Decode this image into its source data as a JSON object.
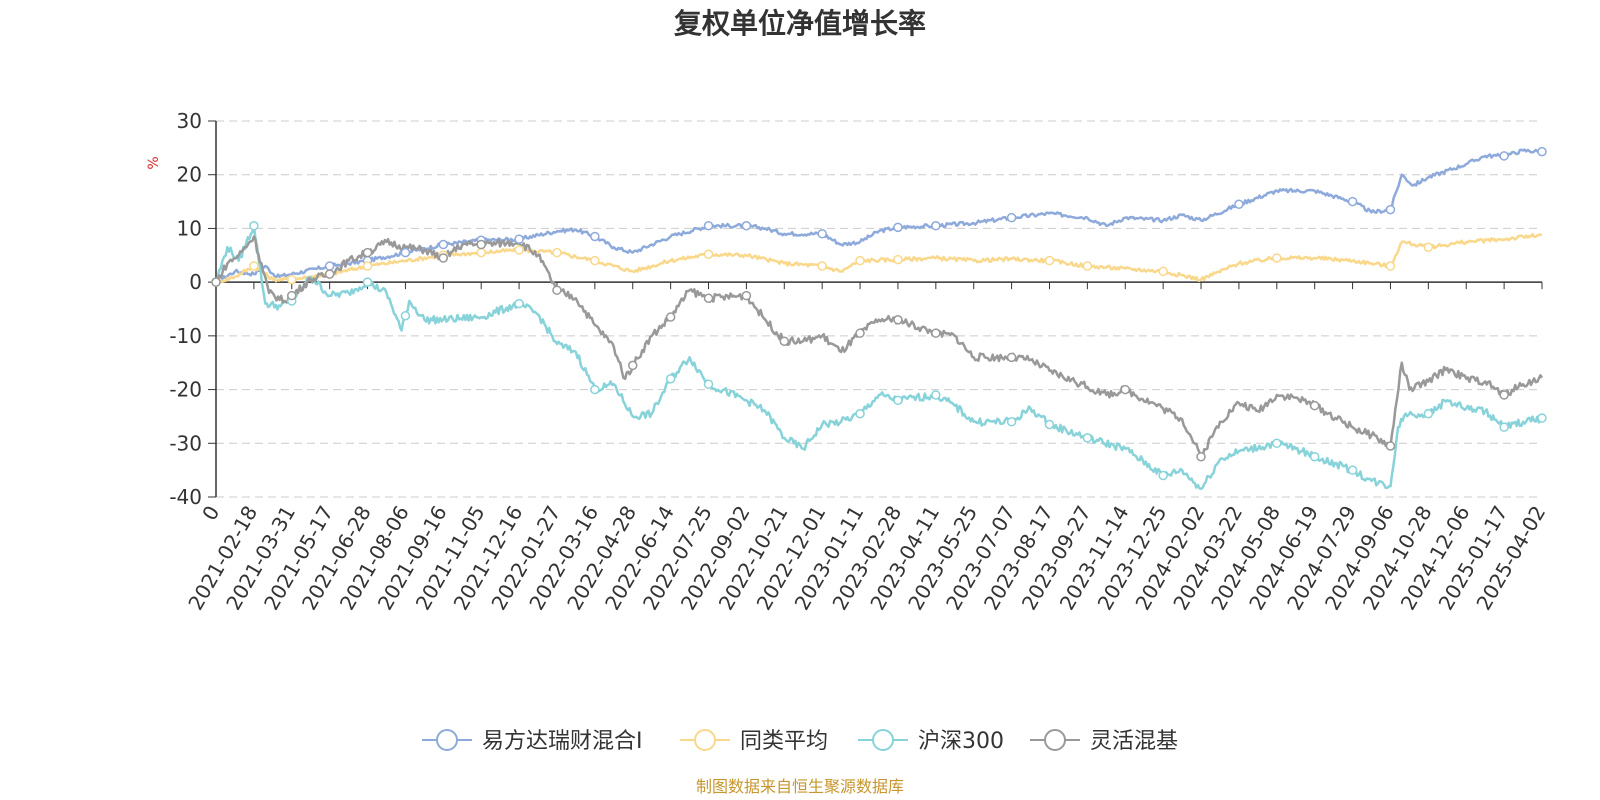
{
  "chart_data": {
    "type": "line",
    "title": "复权单位净值增长率",
    "ylabel": "%",
    "ylim": [
      -40,
      30
    ],
    "yticks": [
      30,
      20,
      10,
      0,
      -10,
      -20,
      -30,
      -40
    ],
    "ytick_labels": [
      "30",
      "20",
      "10",
      "0",
      "-10",
      "-20",
      "-30",
      "-40"
    ],
    "x_categories": [
      "0",
      "2021-02-18",
      "2021-03-31",
      "2021-05-17",
      "2021-06-28",
      "2021-08-06",
      "2021-09-16",
      "2021-11-05",
      "2021-12-16",
      "2022-01-27",
      "2022-03-16",
      "2022-04-28",
      "2022-06-14",
      "2022-07-25",
      "2022-09-02",
      "2022-10-21",
      "2022-12-01",
      "2023-01-11",
      "2023-02-28",
      "2023-04-11",
      "2023-05-25",
      "2023-07-07",
      "2023-08-17",
      "2023-09-27",
      "2023-11-14",
      "2023-12-25",
      "2024-02-02",
      "2024-03-22",
      "2024-05-08",
      "2024-06-19",
      "2024-07-29",
      "2024-09-06",
      "2024-10-28",
      "2024-12-06",
      "2025-01-17",
      "2025-04-02"
    ],
    "x_units": "trading-day index (0–35 maps to the 36 tick labels)",
    "grid": true,
    "legend_position": "bottom",
    "series": [
      {
        "name": "易方达瑞财混合I",
        "color": "#8eaadb",
        "points": [
          [
            0,
            0
          ],
          [
            0.5,
            2.0
          ],
          [
            1,
            1.5
          ],
          [
            1.3,
            3
          ],
          [
            1.6,
            1.0
          ],
          [
            2,
            1.5
          ],
          [
            3,
            3
          ],
          [
            4,
            4
          ],
          [
            5,
            5.5
          ],
          [
            6,
            7
          ],
          [
            7,
            7.8
          ],
          [
            8,
            8
          ],
          [
            9,
            9.5
          ],
          [
            9.5,
            9.8
          ],
          [
            10,
            8.5
          ],
          [
            10.5,
            6.5
          ],
          [
            11,
            5.5
          ],
          [
            12,
            8.5
          ],
          [
            13,
            10.5
          ],
          [
            14,
            10.5
          ],
          [
            14.5,
            10
          ],
          [
            15,
            9
          ],
          [
            16,
            9
          ],
          [
            16.5,
            7
          ],
          [
            17,
            7.5
          ],
          [
            17.5,
            9.5
          ],
          [
            18,
            10.2
          ],
          [
            19,
            10.5
          ],
          [
            20,
            11
          ],
          [
            21,
            12
          ],
          [
            22,
            12.8
          ],
          [
            23,
            12
          ],
          [
            23.5,
            10.5
          ],
          [
            24,
            12
          ],
          [
            25,
            11.5
          ],
          [
            25.5,
            12.5
          ],
          [
            26,
            11.5
          ],
          [
            27,
            14.5
          ],
          [
            28,
            17
          ],
          [
            29,
            17
          ],
          [
            30,
            15
          ],
          [
            30.5,
            13
          ],
          [
            31,
            13.5
          ],
          [
            31.3,
            20
          ],
          [
            31.6,
            18
          ],
          [
            32,
            19.5
          ],
          [
            33,
            22
          ],
          [
            33.5,
            23.5
          ],
          [
            34,
            23.5
          ],
          [
            34.5,
            24.5
          ],
          [
            35,
            24.3
          ]
        ]
      },
      {
        "name": "同类平均",
        "color": "#f9d88b",
        "points": [
          [
            0,
            0
          ],
          [
            0.5,
            1.0
          ],
          [
            1,
            3
          ],
          [
            1.5,
            0.5
          ],
          [
            2,
            0.5
          ],
          [
            3,
            1.5
          ],
          [
            4,
            3
          ],
          [
            5,
            4
          ],
          [
            6,
            5
          ],
          [
            7,
            5.5
          ],
          [
            8,
            6.0
          ],
          [
            9,
            5.5
          ],
          [
            10,
            4
          ],
          [
            11,
            2.0
          ],
          [
            12,
            4
          ],
          [
            13,
            5.2
          ],
          [
            14,
            5
          ],
          [
            15,
            3.5
          ],
          [
            16,
            3
          ],
          [
            16.5,
            2
          ],
          [
            17,
            4
          ],
          [
            18,
            4.2
          ],
          [
            19,
            4.5
          ],
          [
            20,
            4
          ],
          [
            21,
            4.3
          ],
          [
            22,
            4
          ],
          [
            23,
            3
          ],
          [
            24,
            2.5
          ],
          [
            25,
            2
          ],
          [
            26,
            0.5
          ],
          [
            27,
            3.5
          ],
          [
            28,
            4.5
          ],
          [
            29,
            4.5
          ],
          [
            30,
            4
          ],
          [
            30.5,
            3.5
          ],
          [
            31,
            3.0
          ],
          [
            31.3,
            7.5
          ],
          [
            32,
            6.5
          ],
          [
            33,
            7.5
          ],
          [
            34,
            8.0
          ],
          [
            35,
            8.8
          ]
        ]
      },
      {
        "name": "沪深300",
        "color": "#88d3d9",
        "points": [
          [
            0,
            0
          ],
          [
            0.3,
            6.5
          ],
          [
            0.6,
            4
          ],
          [
            1,
            10.5
          ],
          [
            1.3,
            -4
          ],
          [
            1.7,
            -4.5
          ],
          [
            2,
            -3.5
          ],
          [
            2.5,
            1.0
          ],
          [
            3,
            -2.5
          ],
          [
            3.5,
            -2
          ],
          [
            4,
            0
          ],
          [
            4.5,
            -2
          ],
          [
            4.9,
            -9
          ],
          [
            5.1,
            -3.5
          ],
          [
            5.5,
            -7
          ],
          [
            6,
            -7
          ],
          [
            7,
            -6.5
          ],
          [
            8,
            -4
          ],
          [
            8.5,
            -6
          ],
          [
            9,
            -11.5
          ],
          [
            9.5,
            -13
          ],
          [
            10,
            -20
          ],
          [
            10.5,
            -19
          ],
          [
            11,
            -25
          ],
          [
            11.5,
            -24.5
          ],
          [
            12,
            -18
          ],
          [
            12.5,
            -14
          ],
          [
            13,
            -19
          ],
          [
            14,
            -22
          ],
          [
            14.5,
            -24
          ],
          [
            15,
            -29
          ],
          [
            15.5,
            -31
          ],
          [
            16,
            -26.5
          ],
          [
            16.5,
            -26
          ],
          [
            17,
            -24.5
          ],
          [
            17.5,
            -21
          ],
          [
            18,
            -22
          ],
          [
            19,
            -21
          ],
          [
            19.5,
            -23
          ],
          [
            20,
            -26
          ],
          [
            21,
            -26
          ],
          [
            21.5,
            -23.5
          ],
          [
            22,
            -26.5
          ],
          [
            23,
            -29
          ],
          [
            24,
            -31
          ],
          [
            25,
            -36
          ],
          [
            25.5,
            -35
          ],
          [
            26,
            -38.5
          ],
          [
            26.5,
            -33
          ],
          [
            27,
            -31.5
          ],
          [
            28,
            -30
          ],
          [
            28.5,
            -31
          ],
          [
            29,
            -32.5
          ],
          [
            30,
            -35
          ],
          [
            30.5,
            -37
          ],
          [
            31,
            -38
          ],
          [
            31.2,
            -27
          ],
          [
            31.4,
            -24.5
          ],
          [
            32,
            -24.5
          ],
          [
            32.5,
            -22
          ],
          [
            33,
            -23.5
          ],
          [
            33.5,
            -24
          ],
          [
            34,
            -27
          ],
          [
            34.5,
            -26
          ],
          [
            35,
            -25.3
          ]
        ]
      },
      {
        "name": "灵活混基",
        "color": "#999999",
        "points": [
          [
            0,
            0
          ],
          [
            0.3,
            3.5
          ],
          [
            0.6,
            5
          ],
          [
            1,
            8.5
          ],
          [
            1.4,
            -2
          ],
          [
            1.8,
            -3.5
          ],
          [
            2,
            -2.5
          ],
          [
            2.5,
            0.5
          ],
          [
            3,
            1.5
          ],
          [
            3.5,
            4
          ],
          [
            4,
            5.5
          ],
          [
            4.5,
            7.5
          ],
          [
            5,
            6.5
          ],
          [
            5.5,
            6
          ],
          [
            6,
            4.5
          ],
          [
            6.5,
            7
          ],
          [
            7,
            7
          ],
          [
            8,
            7.5
          ],
          [
            8.5,
            5
          ],
          [
            9,
            -1.5
          ],
          [
            9.5,
            -3
          ],
          [
            10,
            -8
          ],
          [
            10.5,
            -12
          ],
          [
            10.8,
            -18
          ],
          [
            11,
            -15.5
          ],
          [
            11.5,
            -10
          ],
          [
            12,
            -6.5
          ],
          [
            12.5,
            -1.5
          ],
          [
            13,
            -3
          ],
          [
            14,
            -2.5
          ],
          [
            14.5,
            -7
          ],
          [
            15,
            -11
          ],
          [
            15.5,
            -11
          ],
          [
            16,
            -10
          ],
          [
            16.5,
            -13
          ],
          [
            17,
            -9.5
          ],
          [
            17.5,
            -7
          ],
          [
            18,
            -7
          ],
          [
            19,
            -9.5
          ],
          [
            19.5,
            -10
          ],
          [
            20,
            -14
          ],
          [
            21,
            -14
          ],
          [
            21.5,
            -14.5
          ],
          [
            22,
            -16.5
          ],
          [
            23,
            -19.5
          ],
          [
            23.5,
            -21
          ],
          [
            24,
            -20
          ],
          [
            25,
            -23.5
          ],
          [
            25.5,
            -25.5
          ],
          [
            26,
            -32.5
          ],
          [
            26.5,
            -26
          ],
          [
            27,
            -22.5
          ],
          [
            27.5,
            -24
          ],
          [
            28,
            -21
          ],
          [
            28.5,
            -21.5
          ],
          [
            29,
            -23
          ],
          [
            30,
            -27
          ],
          [
            30.5,
            -28.5
          ],
          [
            31,
            -30.5
          ],
          [
            31.3,
            -15
          ],
          [
            31.5,
            -20
          ],
          [
            32,
            -18.5
          ],
          [
            32.5,
            -16
          ],
          [
            33,
            -18
          ],
          [
            33.5,
            -18.5
          ],
          [
            34,
            -21
          ],
          [
            34.5,
            -19
          ],
          [
            35,
            -17.8
          ]
        ]
      }
    ]
  },
  "legend": {
    "items": [
      "易方达瑞财混合I",
      "同类平均",
      "沪深300",
      "灵活混基"
    ]
  },
  "footer": {
    "source": "制图数据来自恒生聚源数据库"
  }
}
